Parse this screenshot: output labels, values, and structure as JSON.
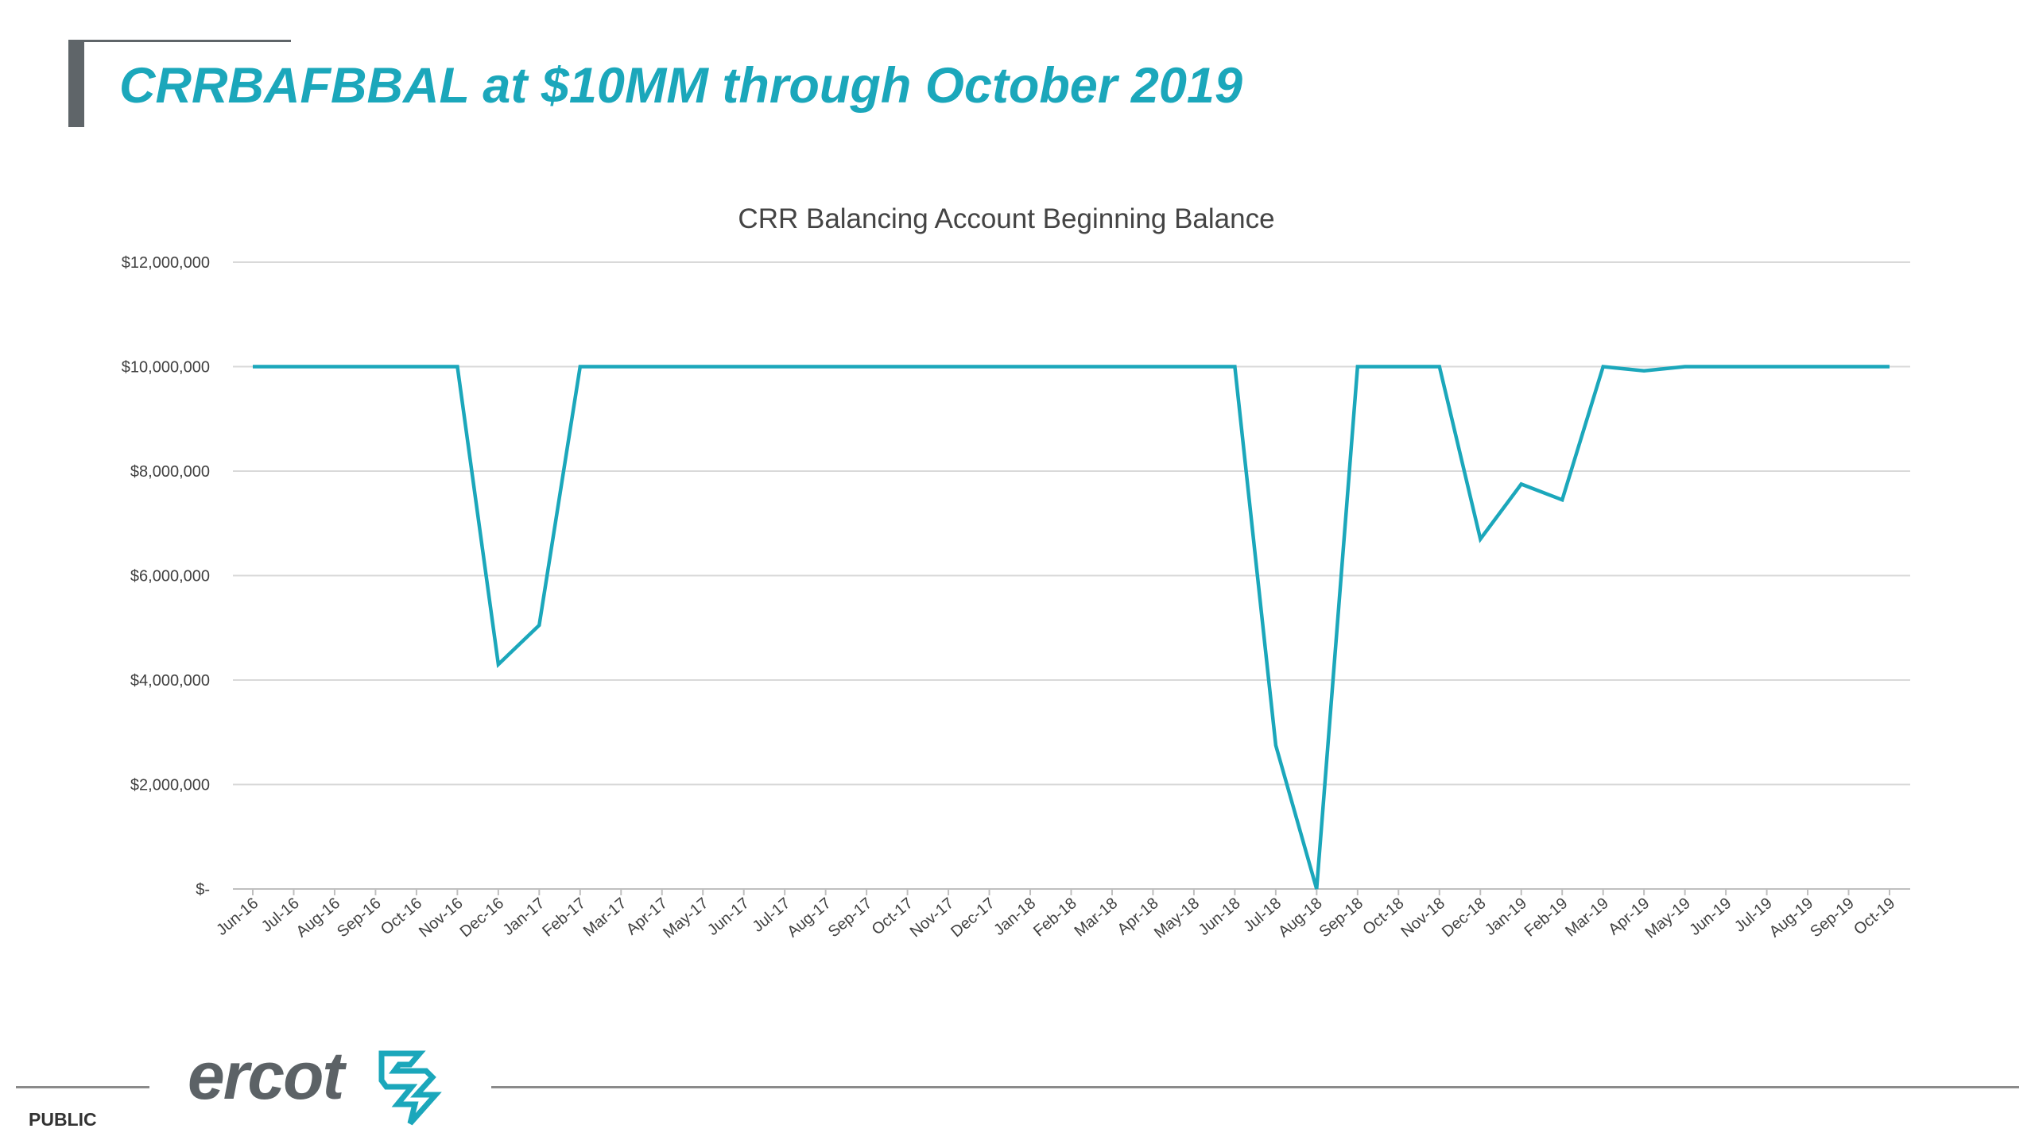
{
  "slide": {
    "title": "CRRBAFBBAL at $10MM through October 2019",
    "classification": "PUBLIC",
    "logo_text": "ercot"
  },
  "colors": {
    "accent": "#1ba7bb",
    "line": "#1ba7bb",
    "title_bar": "#5f6569",
    "gridline": "#d9d9d9"
  },
  "chart_data": {
    "type": "line",
    "title": "CRR Balancing Account Beginning Balance",
    "xlabel": "",
    "ylabel": "",
    "ylim": [
      0,
      12000000
    ],
    "yticks": [
      0,
      2000000,
      4000000,
      6000000,
      8000000,
      10000000,
      12000000
    ],
    "ytick_labels": [
      "$-",
      "$2,000,000",
      "$4,000,000",
      "$6,000,000",
      "$8,000,000",
      "$10,000,000",
      "$12,000,000"
    ],
    "grid": true,
    "legend": "none",
    "categories": [
      "Jun-16",
      "Jul-16",
      "Aug-16",
      "Sep-16",
      "Oct-16",
      "Nov-16",
      "Dec-16",
      "Jan-17",
      "Feb-17",
      "Mar-17",
      "Apr-17",
      "May-17",
      "Jun-17",
      "Jul-17",
      "Aug-17",
      "Sep-17",
      "Oct-17",
      "Nov-17",
      "Dec-17",
      "Jan-18",
      "Feb-18",
      "Mar-18",
      "Apr-18",
      "May-18",
      "Jun-18",
      "Jul-18",
      "Aug-18",
      "Sep-18",
      "Oct-18",
      "Nov-18",
      "Dec-18",
      "Jan-19",
      "Feb-19",
      "Mar-19",
      "Apr-19",
      "May-19",
      "Jun-19",
      "Jul-19",
      "Aug-19",
      "Sep-19",
      "Oct-19"
    ],
    "series": [
      {
        "values": [
          10000000,
          10000000,
          10000000,
          10000000,
          10000000,
          10000000,
          4300000,
          5050000,
          10000000,
          10000000,
          10000000,
          10000000,
          10000000,
          10000000,
          10000000,
          10000000,
          10000000,
          10000000,
          10000000,
          10000000,
          10000000,
          10000000,
          10000000,
          10000000,
          10000000,
          2750000,
          0,
          10000000,
          10000000,
          10000000,
          6700000,
          7750000,
          7450000,
          10000000,
          9920000,
          10000000,
          10000000,
          10000000,
          10000000,
          10000000,
          10000000
        ]
      }
    ]
  }
}
